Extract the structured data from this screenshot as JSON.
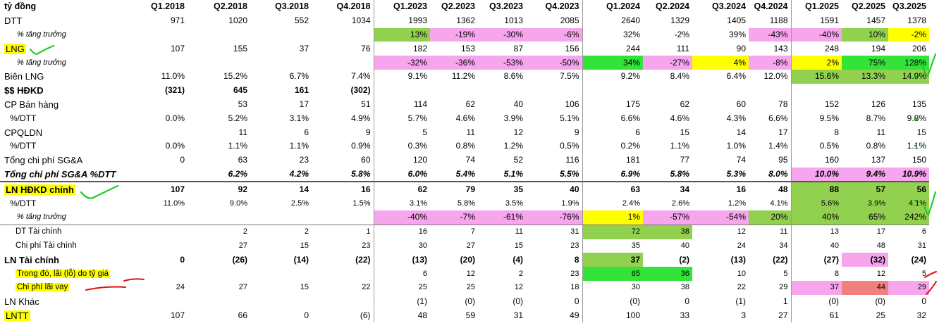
{
  "periods": [
    "Q1.2018",
    "Q2.2018",
    "Q3.2018",
    "Q4.2018",
    "Q1.2023",
    "Q2.2023",
    "Q3.2023",
    "Q4.2023",
    "Q1.2024",
    "Q2.2024",
    "Q3.2024",
    "Q4.2024",
    "Q1.2025",
    "Q2.2025",
    "Q3.2025"
  ],
  "header_label": "tỷ đồng",
  "colors": {
    "pink": "#f7a6ee",
    "green": "#92d050",
    "bright_green": "#33e33a",
    "yellow": "#ffff00",
    "salmon": "#f08080",
    "pen_green": "#22cc22",
    "pen_red": "#dd1111"
  },
  "rows": [
    {
      "label": "DTT",
      "style": "normal",
      "values": [
        "971",
        "1020",
        "552",
        "1034",
        "1993",
        "1362",
        "1013",
        "2085",
        "2640",
        "1329",
        "1405",
        "1188",
        "1591",
        "1457",
        "1378"
      ],
      "fills": [
        "",
        "",
        "",
        "",
        "",
        "",
        "",
        "",
        "",
        "",
        "",
        "",
        "",
        "",
        ""
      ]
    },
    {
      "label": "% tăng trưởng",
      "style": "sub",
      "values": [
        "",
        "",
        "",
        "",
        "13%",
        "-19%",
        "-30%",
        "-6%",
        "32%",
        "-2%",
        "39%",
        "-43%",
        "-40%",
        "10%",
        "-2%"
      ],
      "fills": [
        "",
        "",
        "",
        "",
        "green",
        "pink",
        "pink",
        "pink",
        "",
        "",
        "",
        "pink",
        "pink",
        "green",
        "yellow"
      ]
    },
    {
      "label": "LNG",
      "style": "hl",
      "values": [
        "107",
        "155",
        "37",
        "76",
        "182",
        "153",
        "87",
        "156",
        "244",
        "111",
        "90",
        "143",
        "248",
        "194",
        "206"
      ],
      "fills": [
        "",
        "",
        "",
        "",
        "",
        "",
        "",
        "",
        "",
        "",
        "",
        "",
        "",
        "",
        ""
      ]
    },
    {
      "label": "% tăng trưởng",
      "style": "sub",
      "values": [
        "",
        "",
        "",
        "",
        "-32%",
        "-36%",
        "-53%",
        "-50%",
        "34%",
        "-27%",
        "4%",
        "-8%",
        "2%",
        "75%",
        "128%"
      ],
      "fills": [
        "",
        "",
        "",
        "",
        "pink",
        "pink",
        "pink",
        "pink",
        "bright_green",
        "pink",
        "yellow",
        "pink",
        "yellow",
        "bright_green",
        "bright_green"
      ]
    },
    {
      "label": "Biên LNG",
      "style": "normal",
      "values": [
        "11.0%",
        "15.2%",
        "6.7%",
        "7.4%",
        "9.1%",
        "11.2%",
        "8.6%",
        "7.5%",
        "9.2%",
        "8.4%",
        "6.4%",
        "12.0%",
        "15.6%",
        "13.3%",
        "14.9%"
      ],
      "fills": [
        "",
        "",
        "",
        "",
        "",
        "",
        "",
        "",
        "",
        "",
        "",
        "",
        "green",
        "green",
        "green"
      ]
    },
    {
      "label": "$$ HĐKD",
      "style": "bold",
      "values": [
        "(321)",
        "645",
        "161",
        "(302)",
        "",
        "",
        "",
        "",
        "",
        "",
        "",
        "",
        "",
        "",
        ""
      ],
      "fills": [
        "",
        "",
        "",
        "",
        "",
        "",
        "",
        "",
        "",
        "",
        "",
        "",
        "",
        "",
        ""
      ]
    },
    {
      "label": "CP Bán hàng",
      "style": "normal",
      "values": [
        "",
        "53",
        "17",
        "51",
        "114",
        "62",
        "40",
        "106",
        "175",
        "62",
        "60",
        "78",
        "152",
        "126",
        "135"
      ],
      "fills": [
        "",
        "",
        "",
        "",
        "",
        "",
        "",
        "",
        "",
        "",
        "",
        "",
        "",
        "",
        ""
      ]
    },
    {
      "label": "%/DTT",
      "style": "pct",
      "values": [
        "0.0%",
        "5.2%",
        "3.1%",
        "4.9%",
        "5.7%",
        "4.6%",
        "3.9%",
        "5.1%",
        "6.6%",
        "4.6%",
        "4.3%",
        "6.6%",
        "9.5%",
        "8.7%",
        "9.8%"
      ],
      "fills": [
        "",
        "",
        "",
        "",
        "",
        "",
        "",
        "",
        "",
        "",
        "",
        "",
        "",
        "",
        ""
      ]
    },
    {
      "label": "CPQLDN",
      "style": "normal",
      "values": [
        "",
        "11",
        "6",
        "9",
        "5",
        "11",
        "12",
        "9",
        "6",
        "15",
        "14",
        "17",
        "8",
        "11",
        "15"
      ],
      "fills": [
        "",
        "",
        "",
        "",
        "",
        "",
        "",
        "",
        "",
        "",
        "",
        "",
        "",
        "",
        ""
      ]
    },
    {
      "label": "%/DTT",
      "style": "pct",
      "values": [
        "0.0%",
        "1.1%",
        "1.1%",
        "0.9%",
        "0.3%",
        "0.8%",
        "1.2%",
        "0.5%",
        "0.2%",
        "1.1%",
        "1.0%",
        "1.4%",
        "0.5%",
        "0.8%",
        "1.1%"
      ],
      "fills": [
        "",
        "",
        "",
        "",
        "",
        "",
        "",
        "",
        "",
        "",
        "",
        "",
        "",
        "",
        ""
      ]
    },
    {
      "label": "Tổng chi phí SG&A",
      "style": "normal",
      "values": [
        "0",
        "63",
        "23",
        "60",
        "120",
        "74",
        "52",
        "116",
        "181",
        "77",
        "74",
        "95",
        "160",
        "137",
        "150"
      ],
      "fills": [
        "",
        "",
        "",
        "",
        "",
        "",
        "",
        "",
        "",
        "",
        "",
        "",
        "",
        "",
        ""
      ]
    },
    {
      "label": "Tổng chi phí SG&A %DTT",
      "style": "bi",
      "values": [
        "",
        "6.2%",
        "4.2%",
        "5.8%",
        "6.0%",
        "5.4%",
        "5.1%",
        "5.5%",
        "6.9%",
        "5.8%",
        "5.3%",
        "8.0%",
        "10.0%",
        "9.4%",
        "10.9%"
      ],
      "fills": [
        "",
        "",
        "",
        "",
        "",
        "",
        "",
        "",
        "",
        "",
        "",
        "",
        "pink",
        "pink",
        "pink"
      ]
    },
    {
      "label": "LN HĐKD chính",
      "style": "bold-hl",
      "values": [
        "107",
        "92",
        "14",
        "16",
        "62",
        "79",
        "35",
        "40",
        "63",
        "34",
        "16",
        "48",
        "88",
        "57",
        "56"
      ],
      "fills": [
        "",
        "",
        "",
        "",
        "",
        "",
        "",
        "",
        "",
        "",
        "",
        "",
        "green",
        "green",
        "green"
      ]
    },
    {
      "label": "%/DTT",
      "style": "pct-small",
      "values": [
        "11.0%",
        "9.0%",
        "2.5%",
        "1.5%",
        "3.1%",
        "5.8%",
        "3.5%",
        "1.9%",
        "2.4%",
        "2.6%",
        "1.2%",
        "4.1%",
        "5.6%",
        "3.9%",
        "4.1%"
      ],
      "fills": [
        "",
        "",
        "",
        "",
        "",
        "",
        "",
        "",
        "",
        "",
        "",
        "",
        "green",
        "green",
        "green"
      ]
    },
    {
      "label": "% tăng trưởng",
      "style": "sub",
      "values": [
        "",
        "",
        "",
        "",
        "-40%",
        "-7%",
        "-61%",
        "-76%",
        "1%",
        "-57%",
        "-54%",
        "20%",
        "40%",
        "65%",
        "242%"
      ],
      "fills": [
        "",
        "",
        "",
        "",
        "pink",
        "pink",
        "pink",
        "pink",
        "yellow",
        "pink",
        "pink",
        "green",
        "green",
        "green",
        "green"
      ]
    },
    {
      "label": "DT Tài chính",
      "style": "sub2",
      "values": [
        "",
        "2",
        "2",
        "1",
        "16",
        "7",
        "11",
        "31",
        "72",
        "38",
        "12",
        "11",
        "13",
        "17",
        "6"
      ],
      "fills": [
        "",
        "",
        "",
        "",
        "",
        "",
        "",
        "",
        "green",
        "green",
        "",
        "",
        "",
        "",
        ""
      ]
    },
    {
      "label": "Chi phí Tài chính",
      "style": "sub2",
      "values": [
        "",
        "27",
        "15",
        "23",
        "30",
        "27",
        "15",
        "23",
        "35",
        "40",
        "24",
        "34",
        "40",
        "48",
        "31"
      ],
      "fills": [
        "",
        "",
        "",
        "",
        "",
        "",
        "",
        "",
        "",
        "",
        "",
        "",
        "",
        "",
        ""
      ]
    },
    {
      "label": "LN Tài chính",
      "style": "bold",
      "values": [
        "0",
        "(26)",
        "(14)",
        "(22)",
        "(13)",
        "(20)",
        "(4)",
        "8",
        "37",
        "(2)",
        "(13)",
        "(22)",
        "(27)",
        "(32)",
        "(24)"
      ],
      "fills": [
        "",
        "",
        "",
        "",
        "",
        "",
        "",
        "",
        "green",
        "",
        "",
        "",
        "",
        "pink",
        ""
      ]
    },
    {
      "label": "Trong đó, lãi (lỗ) do tỷ giá",
      "style": "sub2-hl",
      "values": [
        "",
        "",
        "",
        "",
        "6",
        "12",
        "2",
        "23",
        "65",
        "36",
        "10",
        "5",
        "8",
        "12",
        "5"
      ],
      "fills": [
        "",
        "",
        "",
        "",
        "",
        "",
        "",
        "",
        "bright_green",
        "bright_green",
        "",
        "",
        "",
        "",
        ""
      ]
    },
    {
      "label": "Chi phí lãi vay",
      "style": "sub2-hl",
      "values": [
        "24",
        "27",
        "15",
        "22",
        "25",
        "25",
        "12",
        "18",
        "30",
        "38",
        "22",
        "29",
        "37",
        "44",
        "29"
      ],
      "fills": [
        "",
        "",
        "",
        "",
        "",
        "",
        "",
        "",
        "",
        "",
        "",
        "",
        "pink",
        "salmon",
        "pink"
      ]
    },
    {
      "label": "LN Khác",
      "style": "normal",
      "values": [
        "",
        "",
        "",
        "",
        "(1)",
        "(0)",
        "(0)",
        "0",
        "(0)",
        "0",
        "(1)",
        "1",
        "(0)",
        "(0)",
        "0"
      ],
      "fills": [
        "",
        "",
        "",
        "",
        "",
        "",
        "",
        "",
        "",
        "",
        "",
        "",
        "",
        "",
        ""
      ]
    },
    {
      "label": "LNTT",
      "style": "hl",
      "values": [
        "107",
        "66",
        "0",
        "(6)",
        "48",
        "59",
        "31",
        "49",
        "100",
        "33",
        "3",
        "27",
        "61",
        "25",
        "32"
      ],
      "fills": [
        "",
        "",
        "",
        "",
        "",
        "",
        "",
        "",
        "",
        "",
        "",
        "",
        "",
        "",
        ""
      ]
    }
  ]
}
